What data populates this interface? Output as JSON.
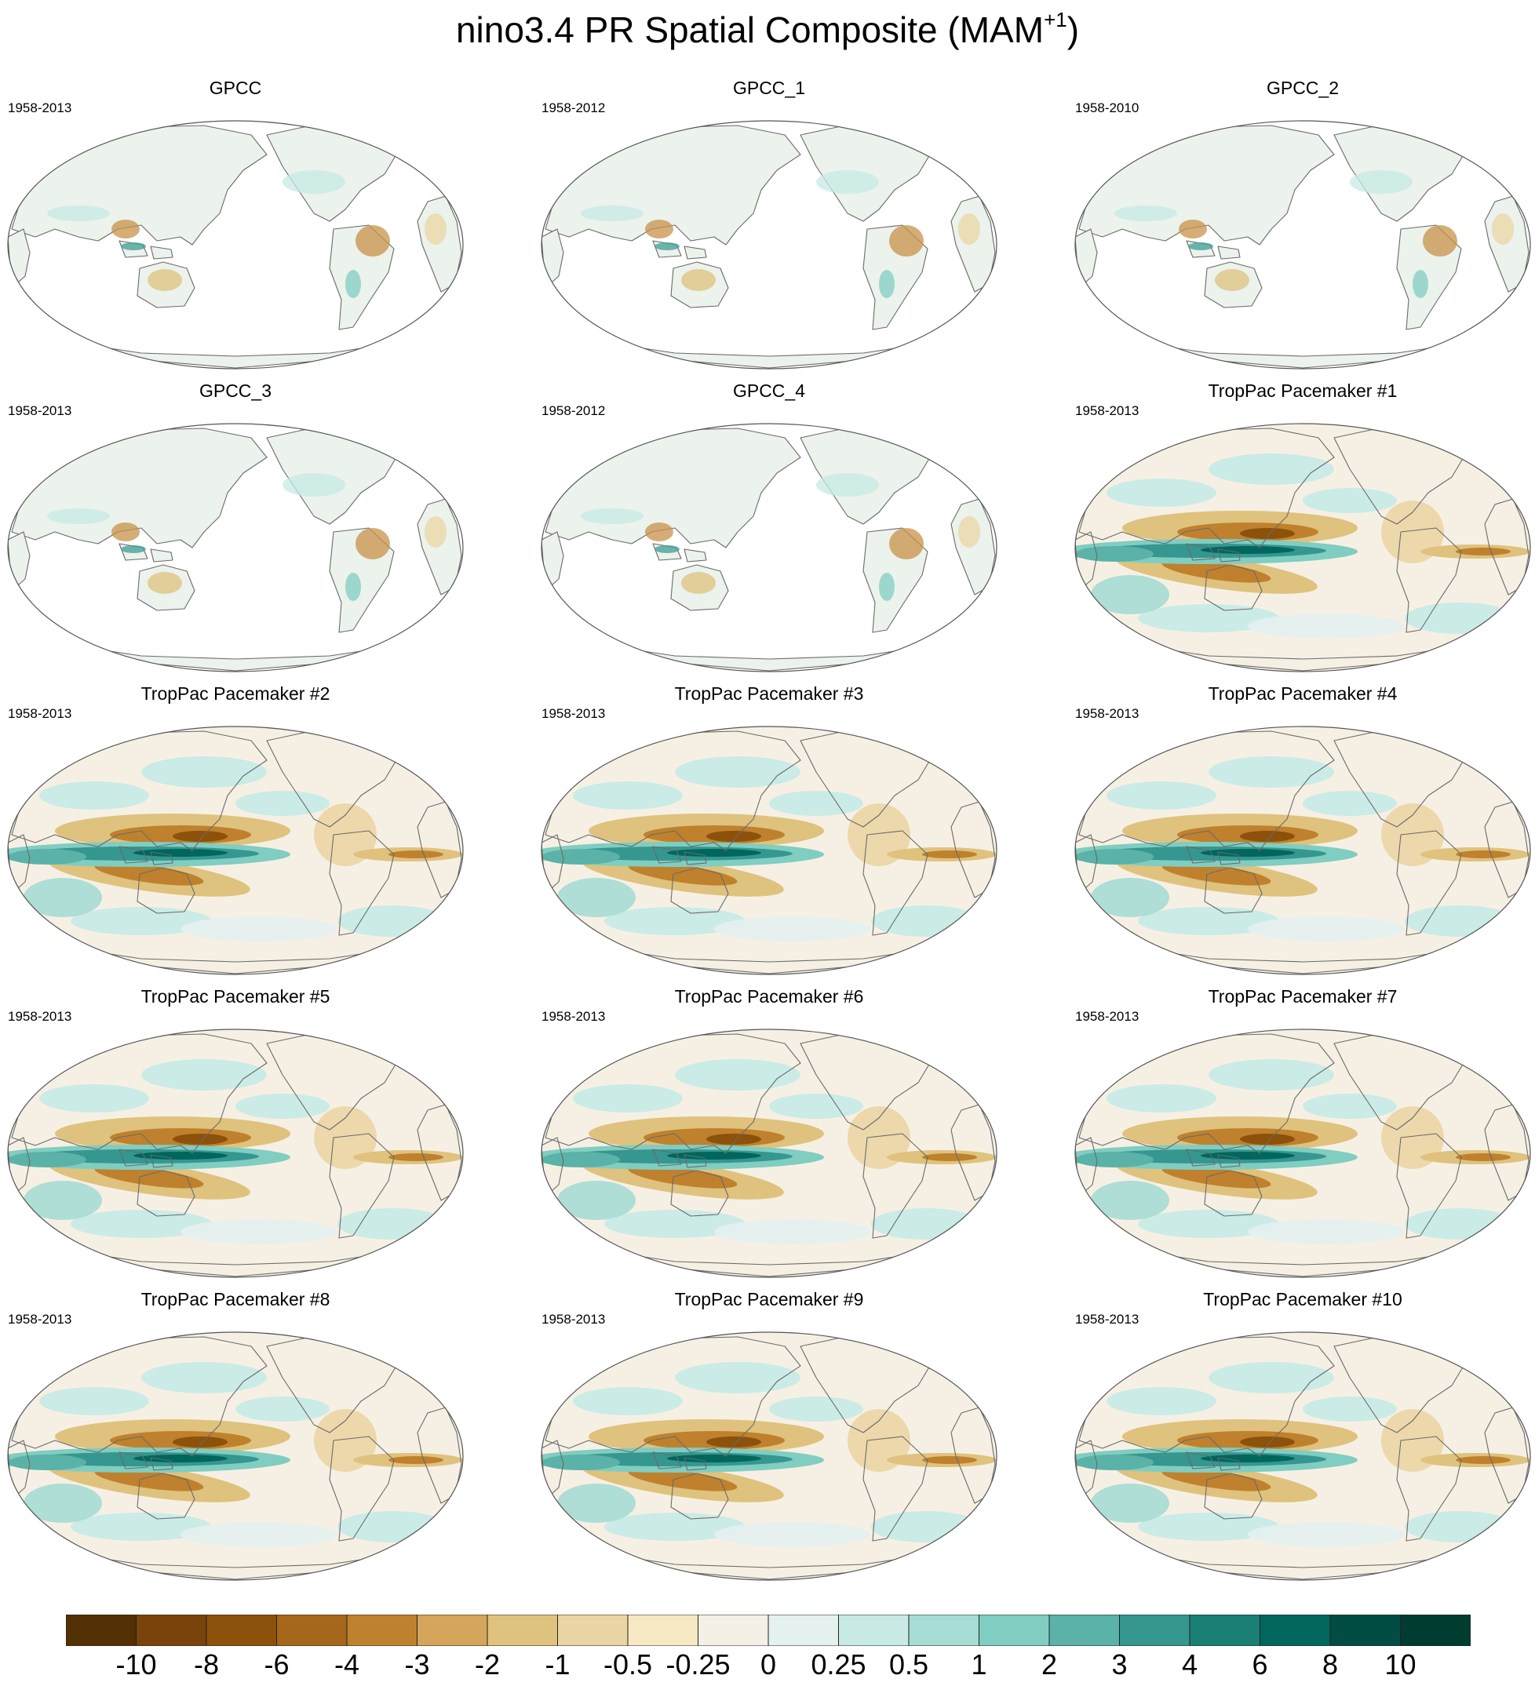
{
  "title": {
    "text": "nino3.4 PR Spatial Composite (MAM",
    "superscript": "+1",
    "close": ")"
  },
  "panels": [
    {
      "title": "GPCC",
      "period": "1958-2013",
      "kind": "obs"
    },
    {
      "title": "GPCC_1",
      "period": "1958-2012",
      "kind": "obs"
    },
    {
      "title": "GPCC_2",
      "period": "1958-2010",
      "kind": "obs"
    },
    {
      "title": "GPCC_3",
      "period": "1958-2013",
      "kind": "obs"
    },
    {
      "title": "GPCC_4",
      "period": "1958-2012",
      "kind": "obs"
    },
    {
      "title": "TropPac Pacemaker #1",
      "period": "1958-2013",
      "kind": "model"
    },
    {
      "title": "TropPac Pacemaker #2",
      "period": "1958-2013",
      "kind": "model"
    },
    {
      "title": "TropPac Pacemaker #3",
      "period": "1958-2013",
      "kind": "model"
    },
    {
      "title": "TropPac Pacemaker #4",
      "period": "1958-2013",
      "kind": "model"
    },
    {
      "title": "TropPac Pacemaker #5",
      "period": "1958-2013",
      "kind": "model"
    },
    {
      "title": "TropPac Pacemaker #6",
      "period": "1958-2013",
      "kind": "model"
    },
    {
      "title": "TropPac Pacemaker #7",
      "period": "1958-2013",
      "kind": "model"
    },
    {
      "title": "TropPac Pacemaker #8",
      "period": "1958-2013",
      "kind": "model"
    },
    {
      "title": "TropPac Pacemaker #9",
      "period": "1958-2013",
      "kind": "model"
    },
    {
      "title": "TropPac Pacemaker #10",
      "period": "1958-2013",
      "kind": "model"
    }
  ],
  "colorbar": {
    "labels": [
      "-10",
      "-8",
      "-6",
      "-4",
      "-3",
      "-2",
      "-1",
      "-0.5",
      "-0.25",
      "0",
      "0.25",
      "0.5",
      "1",
      "2",
      "3",
      "4",
      "6",
      "8",
      "10"
    ],
    "colors": [
      "#543005",
      "#7a4309",
      "#8c510a",
      "#a7671b",
      "#bf812d",
      "#d4a55a",
      "#dfc27d",
      "#ebd5a4",
      "#f6e8c3",
      "#f5f0e6",
      "#e4f1ef",
      "#c7eae5",
      "#a6dcd3",
      "#80cdc1",
      "#5ab2a8",
      "#35978f",
      "#1a7f75",
      "#01665e",
      "#014d44",
      "#003c30"
    ]
  },
  "colors": {
    "ocean": "#ffffff",
    "land": "#ecf2ec",
    "coast": "#6a6a6a",
    "dry": "#c8924a",
    "wet": "#3d9e94"
  }
}
